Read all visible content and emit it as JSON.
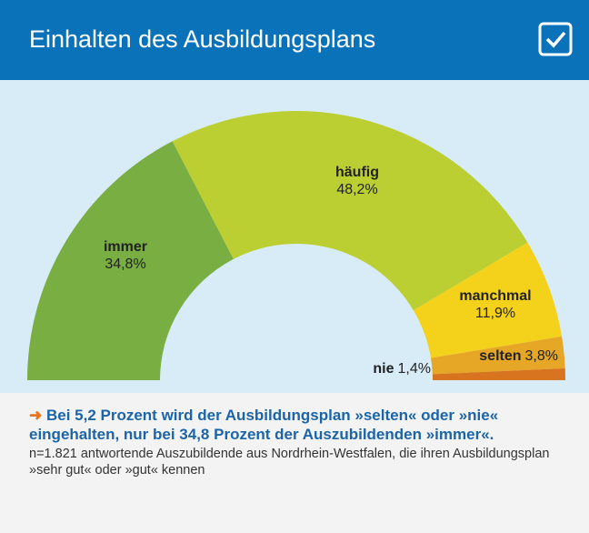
{
  "chart_data": {
    "type": "pie",
    "title": "Einhalten des Ausbildungsplans",
    "categories": [
      "immer",
      "häufig",
      "manchmal",
      "selten",
      "nie"
    ],
    "values": [
      34.8,
      48.2,
      11.9,
      3.8,
      1.4
    ],
    "value_labels": [
      "34,8%",
      "48,2%",
      "11,9%",
      "3,8%",
      "1,4%"
    ],
    "colors": [
      "#78ae42",
      "#bccf32",
      "#f4d21c",
      "#e6a626",
      "#d8731f"
    ],
    "annotation": "Bei 5,2 Prozent wird der Ausbildungsplan »selten« oder »nie« eingehalten, nur bei 34,8 Prozent der Auszubildenden »immer«.",
    "note": "n=1.821 antwortende Auszubildende aus Nordrhein-Westfalen, die ihren Ausbildungsplan »sehr gut« oder »gut« kennen"
  }
}
